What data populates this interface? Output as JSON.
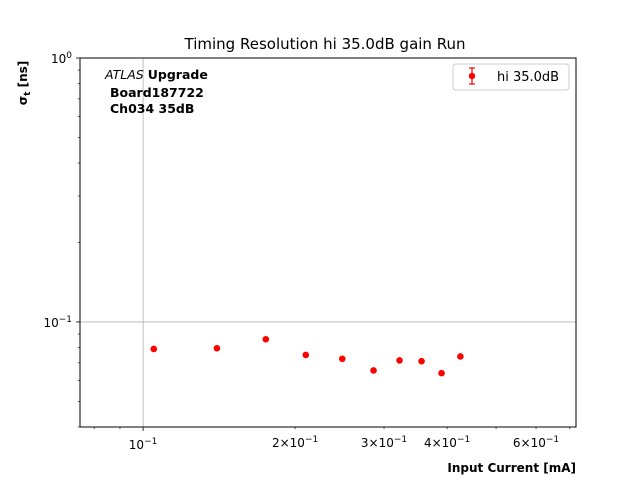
{
  "chart_data": {
    "type": "scatter",
    "title": "Timing Resolution hi 35.0dB gain Run",
    "xlabel": "Input Current [mA]",
    "ylabel_main": "σ",
    "ylabel_sub": "t",
    "ylabel_unit": " [ns]",
    "x_scale": "log",
    "y_scale": "log",
    "xlim": [
      0.075,
      0.72
    ],
    "ylim": [
      0.04,
      1.0
    ],
    "grid": true,
    "grid_lines": {
      "x": [
        0.1
      ],
      "y": [
        0.1,
        1.0
      ]
    },
    "x_major_ticks": [
      {
        "value": 0.1,
        "base": "10",
        "exp": "−1",
        "mult": ""
      }
    ],
    "x_minor_labels": [
      {
        "value": 0.2,
        "base": "10",
        "exp": "−1",
        "mult": "2×"
      },
      {
        "value": 0.3,
        "base": "10",
        "exp": "−1",
        "mult": "3×"
      },
      {
        "value": 0.4,
        "base": "10",
        "exp": "−1",
        "mult": "4×"
      },
      {
        "value": 0.6,
        "base": "10",
        "exp": "−1",
        "mult": "6×"
      }
    ],
    "x_minor_ticks": [
      0.08,
      0.09,
      0.2,
      0.3,
      0.4,
      0.5,
      0.6,
      0.7
    ],
    "y_major_ticks": [
      {
        "value": 0.1,
        "base": "10",
        "exp": "−1"
      },
      {
        "value": 1.0,
        "base": "10",
        "exp": "0"
      }
    ],
    "y_minor_ticks": [
      0.04,
      0.05,
      0.06,
      0.07,
      0.08,
      0.09,
      0.2,
      0.3,
      0.4,
      0.5,
      0.6,
      0.7,
      0.8,
      0.9
    ],
    "legend": {
      "placement": "upper-right",
      "entries": [
        {
          "label": "hi 35.0dB",
          "color": "#ff0000"
        }
      ]
    },
    "series": [
      {
        "name": "hi 35.0dB",
        "color": "#ff0000",
        "x": [
          0.105,
          0.14,
          0.175,
          0.21,
          0.248,
          0.286,
          0.322,
          0.356,
          0.39,
          0.425
        ],
        "y": [
          0.079,
          0.0795,
          0.086,
          0.075,
          0.0725,
          0.0655,
          0.0715,
          0.071,
          0.064,
          0.074
        ]
      }
    ],
    "annotation": {
      "italic": "ATLAS",
      "bold": "Upgrade",
      "line2": "Board187722",
      "line3": "Ch034 35dB"
    }
  }
}
